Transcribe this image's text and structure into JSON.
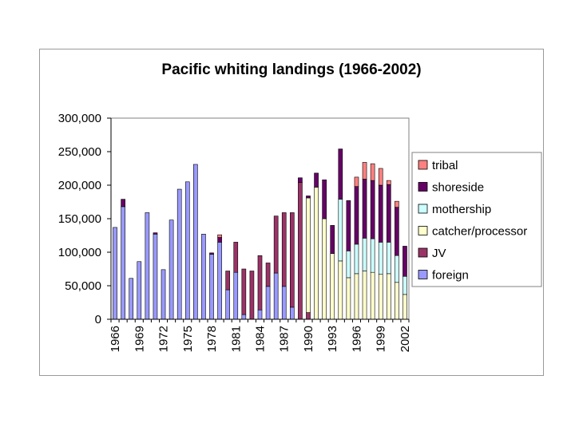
{
  "chart_data": {
    "type": "bar",
    "stacked": true,
    "title": "Pacific whiting landings (1966-2002)",
    "xlabel": "",
    "ylabel": "",
    "ylim": [
      0,
      300000
    ],
    "yticks": [
      "0",
      "50,000",
      "100,000",
      "150,000",
      "200,000",
      "250,000",
      "300,000"
    ],
    "ytick_values": [
      0,
      50000,
      100000,
      150000,
      200000,
      250000,
      300000
    ],
    "x": [
      1966,
      1967,
      1968,
      1969,
      1970,
      1971,
      1972,
      1973,
      1974,
      1975,
      1976,
      1977,
      1978,
      1979,
      1980,
      1981,
      1982,
      1983,
      1984,
      1985,
      1986,
      1987,
      1988,
      1989,
      1990,
      1991,
      1992,
      1993,
      1994,
      1995,
      1996,
      1997,
      1998,
      1999,
      2000,
      2001,
      2002
    ],
    "xtick_labels": [
      "1966",
      "1969",
      "1972",
      "1975",
      "1978",
      "1981",
      "1984",
      "1987",
      "1990",
      "1993",
      "1996",
      "1999",
      "2002"
    ],
    "xtick_years": [
      1966,
      1969,
      1972,
      1975,
      1978,
      1981,
      1984,
      1987,
      1990,
      1993,
      1996,
      1999,
      2002
    ],
    "grid": false,
    "legend_position": "right",
    "series": [
      {
        "name": "foreign",
        "color": "#9999ff",
        "values": [
          137000,
          168000,
          61000,
          86000,
          159000,
          127000,
          74000,
          148000,
          194000,
          205000,
          231000,
          127000,
          97000,
          115000,
          44000,
          70000,
          7000,
          0,
          14000,
          49000,
          69000,
          49000,
          18000,
          0,
          0,
          0,
          0,
          0,
          0,
          0,
          0,
          0,
          0,
          0,
          0,
          0,
          0
        ]
      },
      {
        "name": "JV",
        "color": "#993366",
        "values": [
          0,
          0,
          0,
          0,
          0,
          0,
          0,
          0,
          0,
          0,
          0,
          0,
          0,
          0,
          28000,
          45000,
          68000,
          72000,
          81000,
          35000,
          85000,
          110000,
          141000,
          204000,
          10000,
          0,
          0,
          0,
          0,
          0,
          0,
          0,
          0,
          0,
          0,
          0,
          0
        ]
      },
      {
        "name": "catcher/processor",
        "color": "#ffffcc",
        "values": [
          0,
          0,
          0,
          0,
          0,
          0,
          0,
          0,
          0,
          0,
          0,
          0,
          0,
          0,
          0,
          0,
          0,
          0,
          0,
          0,
          0,
          0,
          0,
          0,
          171000,
          197000,
          150000,
          98000,
          87000,
          62000,
          68000,
          72000,
          70000,
          67000,
          68000,
          55000,
          37000
        ]
      },
      {
        "name": "mothership",
        "color": "#ccffff",
        "values": [
          0,
          0,
          0,
          0,
          0,
          0,
          0,
          0,
          0,
          0,
          0,
          0,
          0,
          0,
          0,
          0,
          0,
          0,
          0,
          0,
          0,
          0,
          0,
          0,
          0,
          0,
          0,
          0,
          92000,
          40000,
          44000,
          49000,
          50000,
          48000,
          47000,
          40000,
          27000
        ]
      },
      {
        "name": "shoreside",
        "color": "#660066",
        "values": [
          0,
          11000,
          0,
          0,
          0,
          2000,
          0,
          0,
          0,
          0,
          0,
          0,
          2000,
          7000,
          0,
          0,
          0,
          0,
          0,
          0,
          0,
          0,
          0,
          7000,
          3000,
          21000,
          58000,
          42000,
          75000,
          75000,
          86000,
          88000,
          87000,
          85000,
          86000,
          72000,
          45000
        ]
      },
      {
        "name": "tribal",
        "color": "#ff8080",
        "values": [
          0,
          0,
          0,
          0,
          0,
          0,
          0,
          0,
          0,
          0,
          0,
          0,
          0,
          4000,
          0,
          0,
          0,
          0,
          0,
          0,
          0,
          0,
          0,
          0,
          0,
          0,
          0,
          0,
          0,
          0,
          14000,
          25000,
          25000,
          25000,
          6000,
          9000,
          0
        ]
      }
    ]
  }
}
